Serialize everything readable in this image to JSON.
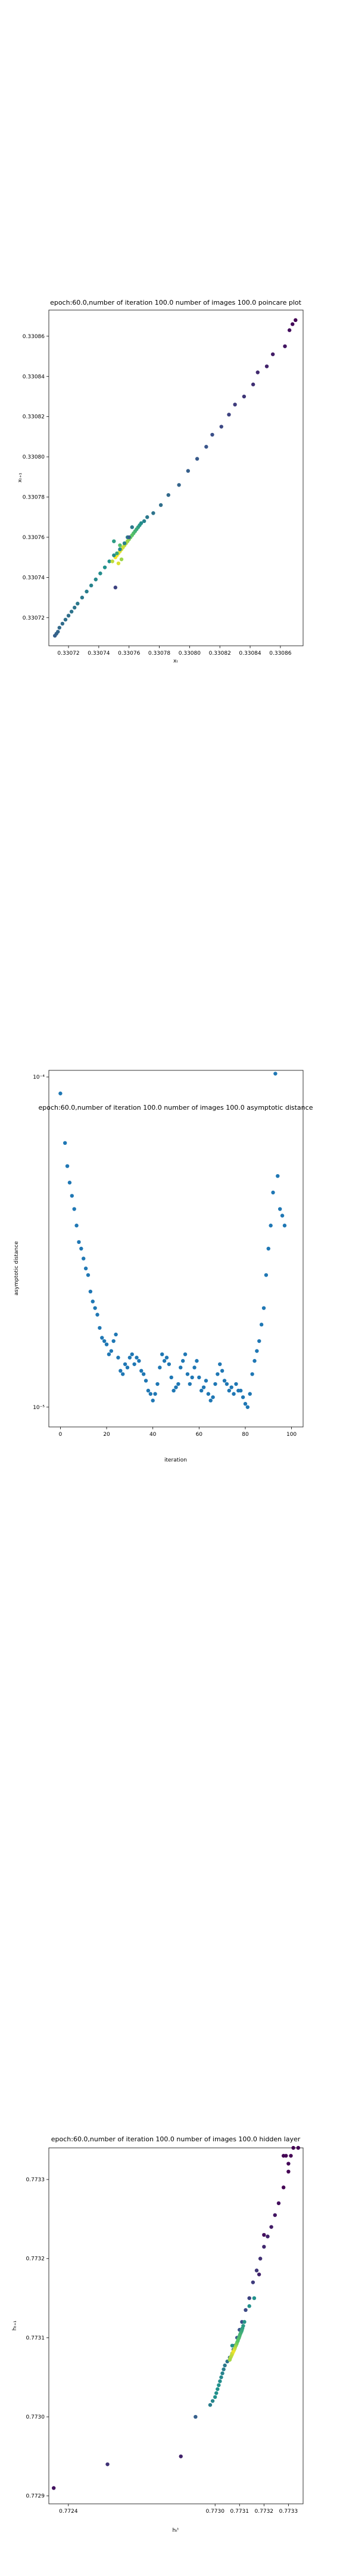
{
  "chart_data": [
    {
      "type": "scatter",
      "title": "epoch:60.0,number of iteration 100.0 number of images 100.0 poincare plot",
      "xlabel": "xₜ",
      "ylabel": "xₜ₊₁",
      "xlim": [
        0.330707,
        0.330875
      ],
      "ylim": [
        0.330706,
        0.330873
      ],
      "x_ticks": [
        0.33072,
        0.33074,
        0.33076,
        0.33078,
        0.3308,
        0.33082,
        0.33084,
        0.33086
      ],
      "x_tick_labels": [
        "0.33072",
        "0.33074",
        "0.33076",
        "0.33078",
        "0.33080",
        "0.33082",
        "0.33084",
        "0.33086"
      ],
      "y_ticks": [
        0.33072,
        0.33074,
        0.33076,
        0.33078,
        0.3308,
        0.33082,
        0.33084,
        0.33086
      ],
      "y_tick_labels": [
        "0.33072",
        "0.33074",
        "0.33076",
        "0.33078",
        "0.33080",
        "0.33082",
        "0.33084",
        "0.33086"
      ],
      "grid": false,
      "colormap": "viridis",
      "x": [
        0.33087,
        0.330868,
        0.330866,
        0.330863,
        0.330855,
        0.330851,
        0.330845,
        0.330842,
        0.330836,
        0.33083,
        0.330826,
        0.330821,
        0.330815,
        0.330811,
        0.330805,
        0.330799,
        0.330793,
        0.330786,
        0.330781,
        0.330776,
        0.330772,
        0.33077,
        0.330768,
        0.330767,
        0.330766,
        0.330765,
        0.330764,
        0.330763,
        0.330762,
        0.330761,
        0.33076,
        0.330759,
        0.330758,
        0.330757,
        0.330756,
        0.330755,
        0.330754,
        0.330753,
        0.330752,
        0.330751,
        0.330762,
        0.330759,
        0.330757,
        0.330754,
        0.33075,
        0.330747,
        0.330744,
        0.330741,
        0.330738,
        0.330735,
        0.330732,
        0.330729,
        0.330726,
        0.330724,
        0.330722,
        0.33072,
        0.330718,
        0.330716,
        0.330714,
        0.330713,
        0.330712,
        0.330711,
        0.330755,
        0.330754,
        0.330753,
        0.330752,
        0.330751,
        0.33075,
        0.33076,
        0.330749
      ],
      "y": [
        0.330868,
        0.330866,
        0.330863,
        0.330855,
        0.330851,
        0.330845,
        0.330842,
        0.330836,
        0.33083,
        0.330826,
        0.330821,
        0.330815,
        0.330811,
        0.330805,
        0.330799,
        0.330793,
        0.330786,
        0.330781,
        0.330776,
        0.330772,
        0.33077,
        0.330768,
        0.330767,
        0.330766,
        0.330765,
        0.330764,
        0.330763,
        0.330762,
        0.330761,
        0.33076,
        0.330759,
        0.330758,
        0.330757,
        0.330756,
        0.330755,
        0.330754,
        0.330753,
        0.330752,
        0.330751,
        0.33075,
        0.330765,
        0.33076,
        0.330757,
        0.330754,
        0.330751,
        0.330748,
        0.330745,
        0.330742,
        0.330739,
        0.330736,
        0.330733,
        0.33073,
        0.330727,
        0.330725,
        0.330723,
        0.330721,
        0.330719,
        0.330717,
        0.330715,
        0.330713,
        0.330712,
        0.330711,
        0.330749,
        0.330756,
        0.330747,
        0.330752,
        0.330735,
        0.330758,
        0.33076,
        0.330748
      ],
      "color_values": [
        0.0,
        0.02,
        0.04,
        0.06,
        0.08,
        0.1,
        0.12,
        0.14,
        0.16,
        0.18,
        0.2,
        0.22,
        0.24,
        0.26,
        0.28,
        0.3,
        0.32,
        0.34,
        0.36,
        0.38,
        0.4,
        0.44,
        0.48,
        0.52,
        0.56,
        0.6,
        0.64,
        0.68,
        0.72,
        0.76,
        0.8,
        0.84,
        0.88,
        0.9,
        0.92,
        0.94,
        0.96,
        0.97,
        0.98,
        0.99,
        0.4,
        0.42,
        0.44,
        0.46,
        0.48,
        0.5,
        0.5,
        0.48,
        0.46,
        0.44,
        0.42,
        0.4,
        0.4,
        0.38,
        0.38,
        0.36,
        0.36,
        0.35,
        0.34,
        0.33,
        0.32,
        0.3,
        0.85,
        0.7,
        0.95,
        0.6,
        0.2,
        0.55,
        0.3,
        0.9
      ]
    },
    {
      "type": "scatter",
      "title": "epoch:60.0,number of iteration 100.0  number of images 100.0 asymptotic distance",
      "xlabel": "iteration",
      "ylabel": "asymptotic distance",
      "xlim": [
        -5,
        105
      ],
      "ylim_log10": [
        -5.06,
        -3.98
      ],
      "yscale": "log",
      "x_ticks": [
        0,
        20,
        40,
        60,
        80,
        100
      ],
      "x_tick_labels": [
        "0",
        "20",
        "40",
        "60",
        "80",
        "100"
      ],
      "y_ticks_log10": [
        -5,
        -4
      ],
      "y_tick_labels": [
        "10⁻⁵",
        "10⁻⁴"
      ],
      "grid": false,
      "color": "#1f77b4",
      "x": [
        0,
        2,
        3,
        4,
        5,
        6,
        7,
        8,
        9,
        10,
        11,
        12,
        13,
        14,
        15,
        16,
        17,
        18,
        19,
        20,
        21,
        22,
        23,
        24,
        25,
        26,
        27,
        28,
        29,
        30,
        31,
        32,
        33,
        34,
        35,
        36,
        37,
        38,
        39,
        40,
        41,
        42,
        43,
        44,
        45,
        46,
        47,
        48,
        49,
        50,
        51,
        52,
        53,
        54,
        55,
        56,
        57,
        58,
        59,
        60,
        61,
        62,
        63,
        64,
        65,
        66,
        67,
        68,
        69,
        70,
        71,
        72,
        73,
        74,
        75,
        76,
        77,
        78,
        79,
        80,
        81,
        82,
        83,
        84,
        85,
        86,
        87,
        88,
        89,
        90,
        91,
        92,
        93,
        94,
        95,
        96,
        97
      ],
      "y_log10": [
        -4.05,
        -4.2,
        -4.27,
        -4.32,
        -4.36,
        -4.4,
        -4.45,
        -4.5,
        -4.52,
        -4.55,
        -4.58,
        -4.6,
        -4.65,
        -4.68,
        -4.7,
        -4.72,
        -4.76,
        -4.79,
        -4.8,
        -4.81,
        -4.84,
        -4.83,
        -4.8,
        -4.78,
        -4.85,
        -4.89,
        -4.9,
        -4.87,
        -4.88,
        -4.85,
        -4.84,
        -4.87,
        -4.85,
        -4.86,
        -4.89,
        -4.9,
        -4.92,
        -4.95,
        -4.96,
        -4.98,
        -4.96,
        -4.93,
        -4.88,
        -4.84,
        -4.86,
        -4.85,
        -4.87,
        -4.91,
        -4.95,
        -4.94,
        -4.93,
        -4.88,
        -4.86,
        -4.84,
        -4.9,
        -4.93,
        -4.91,
        -4.88,
        -4.86,
        -4.91,
        -4.95,
        -4.94,
        -4.92,
        -4.96,
        -4.98,
        -4.97,
        -4.93,
        -4.9,
        -4.87,
        -4.89,
        -4.92,
        -4.93,
        -4.95,
        -4.94,
        -4.96,
        -4.93,
        -4.95,
        -4.95,
        -4.97,
        -4.99,
        -5.0,
        -4.96,
        -4.9,
        -4.86,
        -4.83,
        -4.8,
        -4.75,
        -4.7,
        -4.6,
        -4.52,
        -4.45,
        -4.35,
        -3.99,
        -4.3,
        -4.4,
        -4.42,
        -4.45
      ]
    },
    {
      "type": "scatter",
      "title": "epoch:60.0,number of iteration 100.0  number of images 100.0 hidden layer",
      "xlabel": "hₜᵗ",
      "ylabel": "hₜ₊₁",
      "xlim": [
        0.77232,
        0.77336
      ],
      "ylim": [
        0.77289,
        0.77334
      ],
      "x_ticks": [
        0.7724,
        0.773,
        0.7731,
        0.7732,
        0.7733
      ],
      "x_tick_labels": [
        "0.7724",
        "0.7730",
        "0.7731",
        "0.7732",
        "0.7733"
      ],
      "y_ticks": [
        0.7729,
        0.773,
        0.7731,
        0.7732,
        0.7733
      ],
      "y_tick_labels": [
        "0.7729",
        "0.7730",
        "0.7731",
        "0.7732",
        "0.7733"
      ],
      "grid": false,
      "colormap": "viridis",
      "x": [
        0.77328,
        0.77329,
        0.7733,
        0.77331,
        0.77332,
        0.77334,
        0.77326,
        0.773245,
        0.77323,
        0.773215,
        0.7732,
        0.773185,
        0.77317,
        0.773155,
        0.77314,
        0.773125,
        0.77311,
        0.7731,
        0.77309,
        0.77308,
        0.773075,
        0.77307,
        0.77306,
        0.77305,
        0.77304,
        0.773035,
        0.77303,
        0.773025,
        0.77302,
        0.773015,
        0.77301,
        0.773005,
        0.773,
        0.77299,
        0.77298,
        0.77292,
        0.77286,
        0.77234,
        0.77256,
        0.77316,
        0.77314,
        0.77312,
        0.773115,
        0.773112,
        0.77311,
        0.773108,
        0.773105,
        0.773102,
        0.7731,
        0.773098,
        0.773095,
        0.773093,
        0.77309,
        0.773088,
        0.773085,
        0.773082,
        0.77308,
        0.773077,
        0.773074,
        0.773071,
        0.773068,
        0.773065,
        0.773062,
        0.77306,
        0.7733,
        0.77328,
        0.7732,
        0.77318,
        0.77307
      ],
      "y": [
        0.77333,
        0.77333,
        0.77332,
        0.77333,
        0.77334,
        0.77334,
        0.77327,
        0.773255,
        0.77324,
        0.773228,
        0.773215,
        0.7732,
        0.773185,
        0.77317,
        0.77315,
        0.773135,
        0.77312,
        0.77311,
        0.7731,
        0.77309,
        0.773085,
        0.77308,
        0.773075,
        0.77307,
        0.773065,
        0.77306,
        0.773055,
        0.77305,
        0.773045,
        0.77304,
        0.773035,
        0.77303,
        0.773025,
        0.77302,
        0.773015,
        0.773,
        0.77295,
        0.77291,
        0.77294,
        0.77315,
        0.77314,
        0.77312,
        0.773115,
        0.773112,
        0.77311,
        0.773108,
        0.773106,
        0.773104,
        0.773102,
        0.7731,
        0.773098,
        0.773096,
        0.773094,
        0.773092,
        0.77309,
        0.773088,
        0.773086,
        0.773084,
        0.773082,
        0.77308,
        0.773078,
        0.773076,
        0.773074,
        0.773072,
        0.77331,
        0.77329,
        0.77323,
        0.77318,
        0.77309
      ],
      "color_values": [
        0.0,
        0.0,
        0.02,
        0.0,
        0.0,
        0.0,
        0.04,
        0.06,
        0.08,
        0.1,
        0.12,
        0.14,
        0.16,
        0.18,
        0.2,
        0.22,
        0.24,
        0.26,
        0.28,
        0.3,
        0.32,
        0.34,
        0.36,
        0.38,
        0.4,
        0.42,
        0.44,
        0.46,
        0.48,
        0.5,
        0.5,
        0.5,
        0.5,
        0.45,
        0.42,
        0.3,
        0.1,
        0.05,
        0.15,
        0.5,
        0.5,
        0.52,
        0.54,
        0.56,
        0.58,
        0.6,
        0.62,
        0.64,
        0.66,
        0.68,
        0.7,
        0.72,
        0.74,
        0.78,
        0.82,
        0.86,
        0.9,
        0.94,
        0.98,
        0.96,
        0.92,
        0.9,
        0.88,
        0.86,
        0.0,
        0.0,
        0.04,
        0.1,
        0.5
      ]
    }
  ]
}
